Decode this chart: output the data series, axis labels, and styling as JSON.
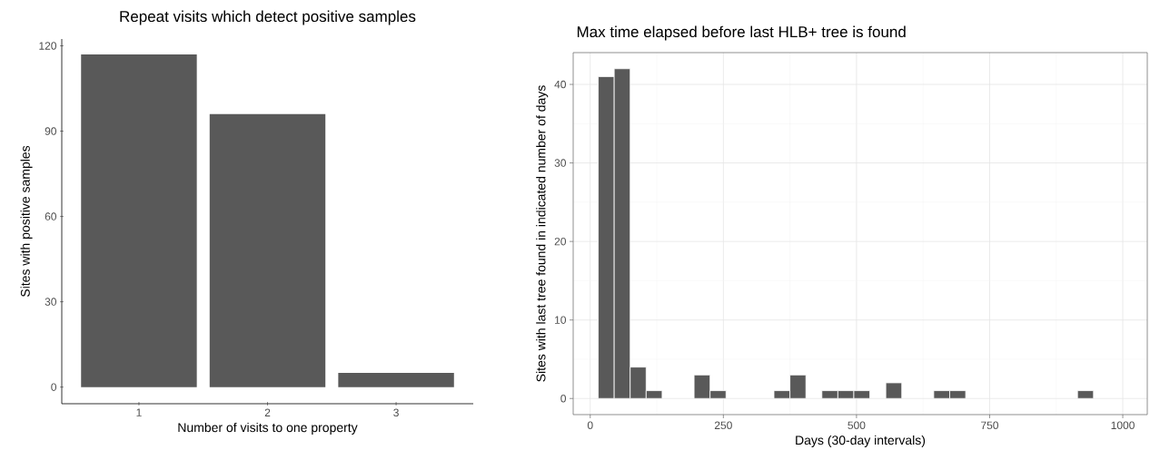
{
  "chart_data": [
    {
      "type": "bar",
      "title": "Repeat visits which detect positive samples",
      "xlabel": "Number of visits to one property",
      "ylabel": "Sites with positive samples",
      "categories": [
        "1",
        "2",
        "3"
      ],
      "values": [
        117,
        96,
        5
      ],
      "color": "#595959",
      "ylim": [
        -5.85,
        122.4
      ],
      "yticks": [
        0,
        30,
        60,
        90,
        120
      ]
    },
    {
      "type": "histogram",
      "title": "Max time elapsed before last HLB+ tree is found",
      "xlabel": "Days (30-day intervals)",
      "ylabel": "Sites with last tree found in indicated number of days",
      "bins": [
        15,
        45,
        75,
        105,
        135,
        165,
        195,
        225,
        255,
        285,
        315,
        345,
        375,
        405,
        435,
        465,
        495,
        525,
        555,
        585,
        615,
        645,
        675,
        705,
        735,
        765,
        795,
        825,
        855,
        885,
        915,
        945
      ],
      "values": [
        41,
        42,
        4,
        1,
        0,
        0,
        3,
        1,
        0,
        0,
        0,
        1,
        3,
        0,
        1,
        1,
        1,
        0,
        2,
        0,
        0,
        1,
        1,
        0,
        0,
        0,
        0,
        0,
        0,
        0,
        1
      ],
      "color": "#595959",
      "xlim": [
        -32,
        1046
      ],
      "ylim": [
        -2.05,
        44.05
      ],
      "xticks": [
        0,
        250,
        500,
        750,
        1000
      ],
      "yticks": [
        0,
        10,
        20,
        30,
        40
      ],
      "grid": true
    }
  ]
}
